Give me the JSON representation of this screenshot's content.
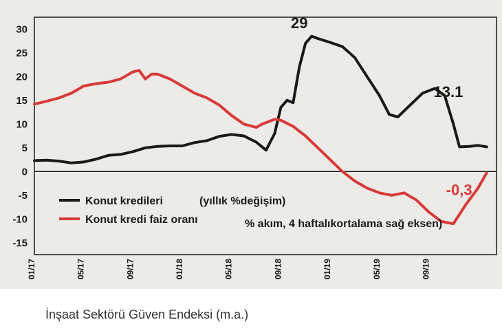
{
  "caption": "İnşaat Sektörü Güven Endeksi (m.a.)",
  "colors": {
    "background": "#ecebe7",
    "series1": "#1a1a1a",
    "series2": "#d83a3a",
    "axis": "#1a1a1a"
  },
  "chart_data": {
    "type": "line",
    "x_tick_labels": [
      "01/17",
      "05/17",
      "09/17",
      "01/18",
      "05/18",
      "09/18",
      "01/19",
      "05/19",
      "09/19"
    ],
    "yticks": [
      30,
      25,
      20,
      15,
      10,
      5,
      0,
      -5,
      -10,
      -15
    ],
    "ylim": [
      -17.5,
      32.5
    ],
    "grid": false,
    "legend": "bottom-left",
    "legend_entries": [
      {
        "label": "Konut kredileri",
        "note": "(yıllık %değişim)"
      },
      {
        "label": "Konut kredi faiz oranı",
        "note": "% akım, 4 haftalıkortalama sağ eksen)"
      }
    ],
    "annotations": [
      {
        "text": "29",
        "x": 21.5,
        "y": 29,
        "color": "#1a1a1a"
      },
      {
        "text": "13.1",
        "x": 33.7,
        "y": 13.1,
        "color": "#1a1a1a"
      },
      {
        "text": "-0,3",
        "x": 35.3,
        "y": -0.3,
        "color": "#d83a3a"
      }
    ],
    "x_unit": "months since 01/17",
    "series": [
      {
        "name": "Konut kredileri",
        "color": "#1a1a1a",
        "points": [
          [
            0,
            2.3
          ],
          [
            1,
            2.4
          ],
          [
            2,
            2.2
          ],
          [
            3,
            1.8
          ],
          [
            4,
            2.0
          ],
          [
            5,
            2.6
          ],
          [
            6,
            3.4
          ],
          [
            7,
            3.6
          ],
          [
            8,
            4.2
          ],
          [
            9,
            5.0
          ],
          [
            10,
            5.3
          ],
          [
            11,
            5.4
          ],
          [
            12,
            5.4
          ],
          [
            13,
            6.1
          ],
          [
            14,
            6.5
          ],
          [
            15,
            7.4
          ],
          [
            16,
            7.8
          ],
          [
            17,
            7.5
          ],
          [
            18,
            6.2
          ],
          [
            18.8,
            4.5
          ],
          [
            19.5,
            8.0
          ],
          [
            20,
            13.5
          ],
          [
            20.5,
            15.0
          ],
          [
            21,
            14.5
          ],
          [
            21.5,
            22.0
          ],
          [
            22,
            27.0
          ],
          [
            22.5,
            28.5
          ],
          [
            23,
            28.0
          ],
          [
            24,
            27.2
          ],
          [
            25,
            26.3
          ],
          [
            26,
            24.0
          ],
          [
            27,
            20.0
          ],
          [
            28,
            16.0
          ],
          [
            28.8,
            12.0
          ],
          [
            29.5,
            11.5
          ],
          [
            30.5,
            14.0
          ],
          [
            31.5,
            16.5
          ],
          [
            32.5,
            17.5
          ],
          [
            33.3,
            16.0
          ],
          [
            34,
            10.0
          ],
          [
            34.5,
            5.2
          ],
          [
            35.3,
            5.3
          ],
          [
            36,
            5.5
          ],
          [
            36.7,
            5.2
          ]
        ]
      },
      {
        "name": "Konut kredi faiz oranı",
        "color": "#d83a3a",
        "points": [
          [
            0,
            14.2
          ],
          [
            1,
            14.8
          ],
          [
            2,
            15.5
          ],
          [
            3,
            16.5
          ],
          [
            4,
            18.0
          ],
          [
            5,
            18.5
          ],
          [
            6,
            18.8
          ],
          [
            7,
            19.5
          ],
          [
            8,
            21.0
          ],
          [
            8.5,
            21.3
          ],
          [
            9,
            19.5
          ],
          [
            9.5,
            20.5
          ],
          [
            10,
            20.5
          ],
          [
            11,
            19.5
          ],
          [
            12,
            18.0
          ],
          [
            13,
            16.5
          ],
          [
            14,
            15.5
          ],
          [
            15,
            14.0
          ],
          [
            16,
            11.8
          ],
          [
            17,
            10.0
          ],
          [
            18,
            9.3
          ],
          [
            18.5,
            10.0
          ],
          [
            19,
            10.5
          ],
          [
            19.5,
            11.0
          ],
          [
            20,
            10.8
          ],
          [
            21,
            9.5
          ],
          [
            22,
            7.5
          ],
          [
            23,
            5.0
          ],
          [
            24,
            2.5
          ],
          [
            25,
            0.0
          ],
          [
            26,
            -2.0
          ],
          [
            27,
            -3.5
          ],
          [
            28,
            -4.5
          ],
          [
            29,
            -5.0
          ],
          [
            30,
            -4.5
          ],
          [
            31,
            -6.0
          ],
          [
            32,
            -8.5
          ],
          [
            33,
            -10.5
          ],
          [
            34,
            -11.0
          ],
          [
            35,
            -7.0
          ],
          [
            36,
            -3.5
          ],
          [
            36.7,
            -0.3
          ]
        ]
      }
    ]
  }
}
